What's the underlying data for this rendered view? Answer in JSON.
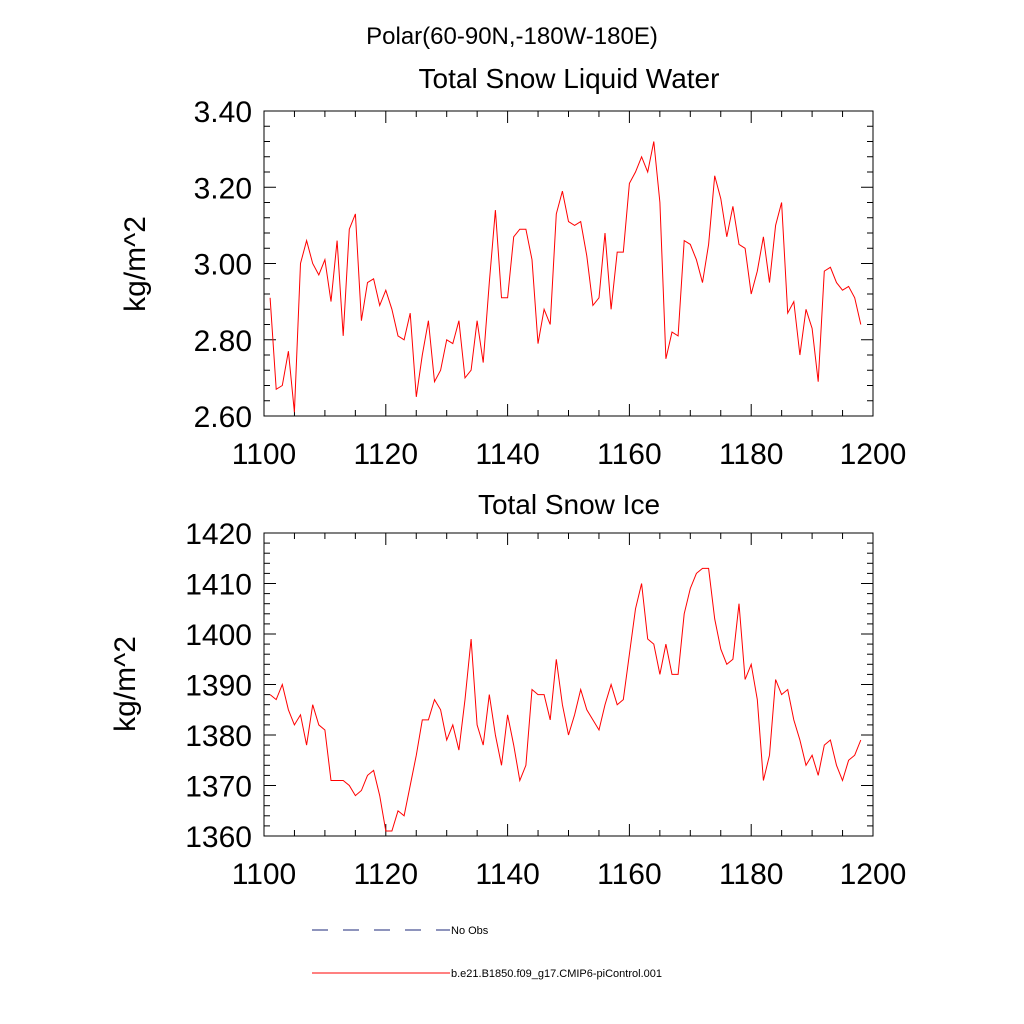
{
  "page": {
    "title": "Polar(60-90N,-180W-180E)"
  },
  "chart_data": [
    {
      "type": "line",
      "title": "Total Snow Liquid Water",
      "xlabel": "",
      "ylabel": "kg/m^2",
      "xlim": [
        1100,
        1200
      ],
      "ylim": [
        2.6,
        3.4
      ],
      "x_ticks": [
        "1100",
        "1120",
        "1140",
        "1160",
        "1180",
        "1200"
      ],
      "y_ticks": [
        "2.60",
        "2.80",
        "3.00",
        "3.20",
        "3.40"
      ],
      "grid": false,
      "series": [
        {
          "name": "b.e21.B1850.f09_g17.CMIP6-piControl.001",
          "color": "#ff0000",
          "x": [
            1101,
            1102,
            1103,
            1104,
            1105,
            1106,
            1107,
            1108,
            1109,
            1110,
            1111,
            1112,
            1113,
            1114,
            1115,
            1116,
            1117,
            1118,
            1119,
            1120,
            1121,
            1122,
            1123,
            1124,
            1125,
            1126,
            1127,
            1128,
            1129,
            1130,
            1131,
            1132,
            1133,
            1134,
            1135,
            1136,
            1137,
            1138,
            1139,
            1140,
            1141,
            1142,
            1143,
            1144,
            1145,
            1146,
            1147,
            1148,
            1149,
            1150,
            1151,
            1152,
            1153,
            1154,
            1155,
            1156,
            1157,
            1158,
            1159,
            1160,
            1161,
            1162,
            1163,
            1164,
            1165,
            1166,
            1167,
            1168,
            1169,
            1170,
            1171,
            1172,
            1173,
            1174,
            1175,
            1176,
            1177,
            1178,
            1179,
            1180,
            1181,
            1182,
            1183,
            1184,
            1185,
            1186,
            1187,
            1188,
            1189,
            1190,
            1191,
            1192,
            1193,
            1194,
            1195,
            1196,
            1197,
            1198
          ],
          "values": [
            2.91,
            2.67,
            2.68,
            2.77,
            2.61,
            3.0,
            3.06,
            3.0,
            2.97,
            3.01,
            2.9,
            3.06,
            2.81,
            3.09,
            3.13,
            2.85,
            2.95,
            2.96,
            2.89,
            2.93,
            2.88,
            2.81,
            2.8,
            2.87,
            2.65,
            2.76,
            2.85,
            2.69,
            2.72,
            2.8,
            2.79,
            2.85,
            2.7,
            2.72,
            2.85,
            2.74,
            2.95,
            3.14,
            2.91,
            2.91,
            3.07,
            3.09,
            3.09,
            3.01,
            2.79,
            2.88,
            2.84,
            3.13,
            3.19,
            3.11,
            3.1,
            3.11,
            3.02,
            2.89,
            2.91,
            3.08,
            2.88,
            3.03,
            3.03,
            3.21,
            3.24,
            3.28,
            3.24,
            3.32,
            3.16,
            2.75,
            2.82,
            2.81,
            3.06,
            3.05,
            3.01,
            2.95,
            3.05,
            3.23,
            3.17,
            3.07,
            3.15,
            3.05,
            3.04,
            2.92,
            2.98,
            3.07,
            2.95,
            3.1,
            3.16,
            2.87,
            2.9,
            2.76,
            2.88,
            2.83,
            2.69,
            2.98,
            2.99,
            2.95,
            2.93,
            2.94,
            2.91,
            2.84
          ]
        }
      ]
    },
    {
      "type": "line",
      "title": "Total Snow Ice",
      "xlabel": "",
      "ylabel": "kg/m^2",
      "xlim": [
        1100,
        1200
      ],
      "ylim": [
        1360,
        1420
      ],
      "x_ticks": [
        "1100",
        "1120",
        "1140",
        "1160",
        "1180",
        "1200"
      ],
      "y_ticks": [
        "1360",
        "1370",
        "1380",
        "1390",
        "1400",
        "1410",
        "1420"
      ],
      "grid": false,
      "series": [
        {
          "name": "b.e21.B1850.f09_g17.CMIP6-piControl.001",
          "color": "#ff0000",
          "x": [
            1101,
            1102,
            1103,
            1104,
            1105,
            1106,
            1107,
            1108,
            1109,
            1110,
            1111,
            1112,
            1113,
            1114,
            1115,
            1116,
            1117,
            1118,
            1119,
            1120,
            1121,
            1122,
            1123,
            1124,
            1125,
            1126,
            1127,
            1128,
            1129,
            1130,
            1131,
            1132,
            1133,
            1134,
            1135,
            1136,
            1137,
            1138,
            1139,
            1140,
            1141,
            1142,
            1143,
            1144,
            1145,
            1146,
            1147,
            1148,
            1149,
            1150,
            1151,
            1152,
            1153,
            1154,
            1155,
            1156,
            1157,
            1158,
            1159,
            1160,
            1161,
            1162,
            1163,
            1164,
            1165,
            1166,
            1167,
            1168,
            1169,
            1170,
            1171,
            1172,
            1173,
            1174,
            1175,
            1176,
            1177,
            1178,
            1179,
            1180,
            1181,
            1182,
            1183,
            1184,
            1185,
            1186,
            1187,
            1188,
            1189,
            1190,
            1191,
            1192,
            1193,
            1194,
            1195,
            1196,
            1197,
            1198
          ],
          "values": [
            1388,
            1387,
            1390,
            1385,
            1382,
            1384,
            1378,
            1386,
            1382,
            1381,
            1371,
            1371,
            1371,
            1370,
            1368,
            1369,
            1372,
            1373,
            1368,
            1361,
            1361,
            1365,
            1364,
            1370,
            1376,
            1383,
            1383,
            1387,
            1385,
            1379,
            1382,
            1377,
            1387,
            1399,
            1382,
            1378,
            1388,
            1380,
            1374,
            1384,
            1378,
            1371,
            1374,
            1389,
            1388,
            1388,
            1383,
            1395,
            1386,
            1380,
            1384,
            1389,
            1385,
            1383,
            1381,
            1386,
            1390,
            1386,
            1387,
            1396,
            1405,
            1410,
            1399,
            1398,
            1392,
            1398,
            1392,
            1392,
            1404,
            1409,
            1412,
            1413,
            1413,
            1403,
            1397,
            1394,
            1395,
            1406,
            1391,
            1394,
            1387,
            1371,
            1376,
            1391,
            1388,
            1389,
            1383,
            1379,
            1374,
            1376,
            1372,
            1378,
            1379,
            1374,
            1371,
            1375,
            1376,
            1379
          ]
        }
      ]
    }
  ],
  "legend": {
    "position": "bottom",
    "entries": [
      {
        "label": "No Obs",
        "color": "#1e2a78",
        "style": "dashed"
      },
      {
        "label": "b.e21.B1850.f09_g17.CMIP6-piControl.001",
        "color": "#ff0000",
        "style": "solid"
      }
    ]
  }
}
